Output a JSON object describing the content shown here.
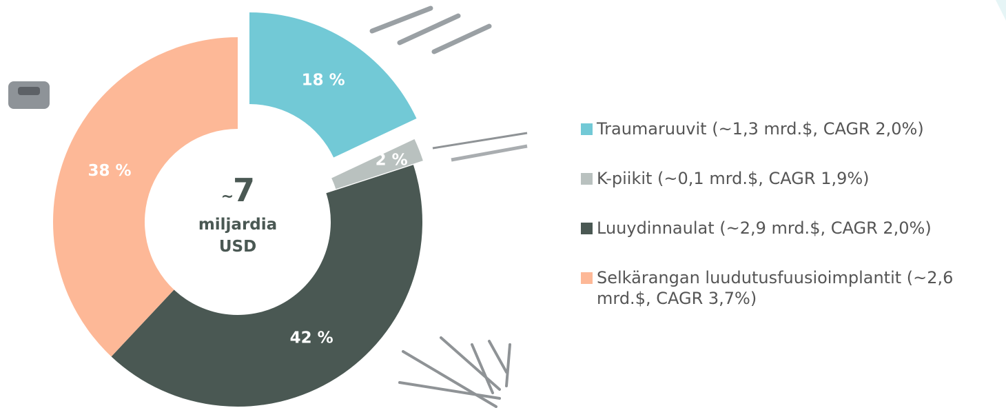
{
  "chart_data": {
    "type": "donut",
    "categories": [
      "Traumaruuvit (~1,3 mrd.$, CAGR 2,0%)",
      "K-piikit (~0,1 mrd.$, CAGR 1,9%)",
      "Luuydinnaulat (~2,9 mrd.$, CAGR 2,0%)",
      "Selkärangan luudutusfuusioimplantit (~2,6 mrd.$, CAGR 3,7%)"
    ],
    "values": [
      18,
      2,
      42,
      38
    ],
    "value_labels": [
      "18 %",
      "2 %",
      "42 %",
      "38 %"
    ],
    "colors": [
      "#72c9d6",
      "#b9c1bf",
      "#4a5853",
      "#fdb897"
    ],
    "center_label": {
      "prefix": "~",
      "number": "7",
      "lines": [
        "miljardia",
        "USD"
      ]
    },
    "legend": "right"
  }
}
